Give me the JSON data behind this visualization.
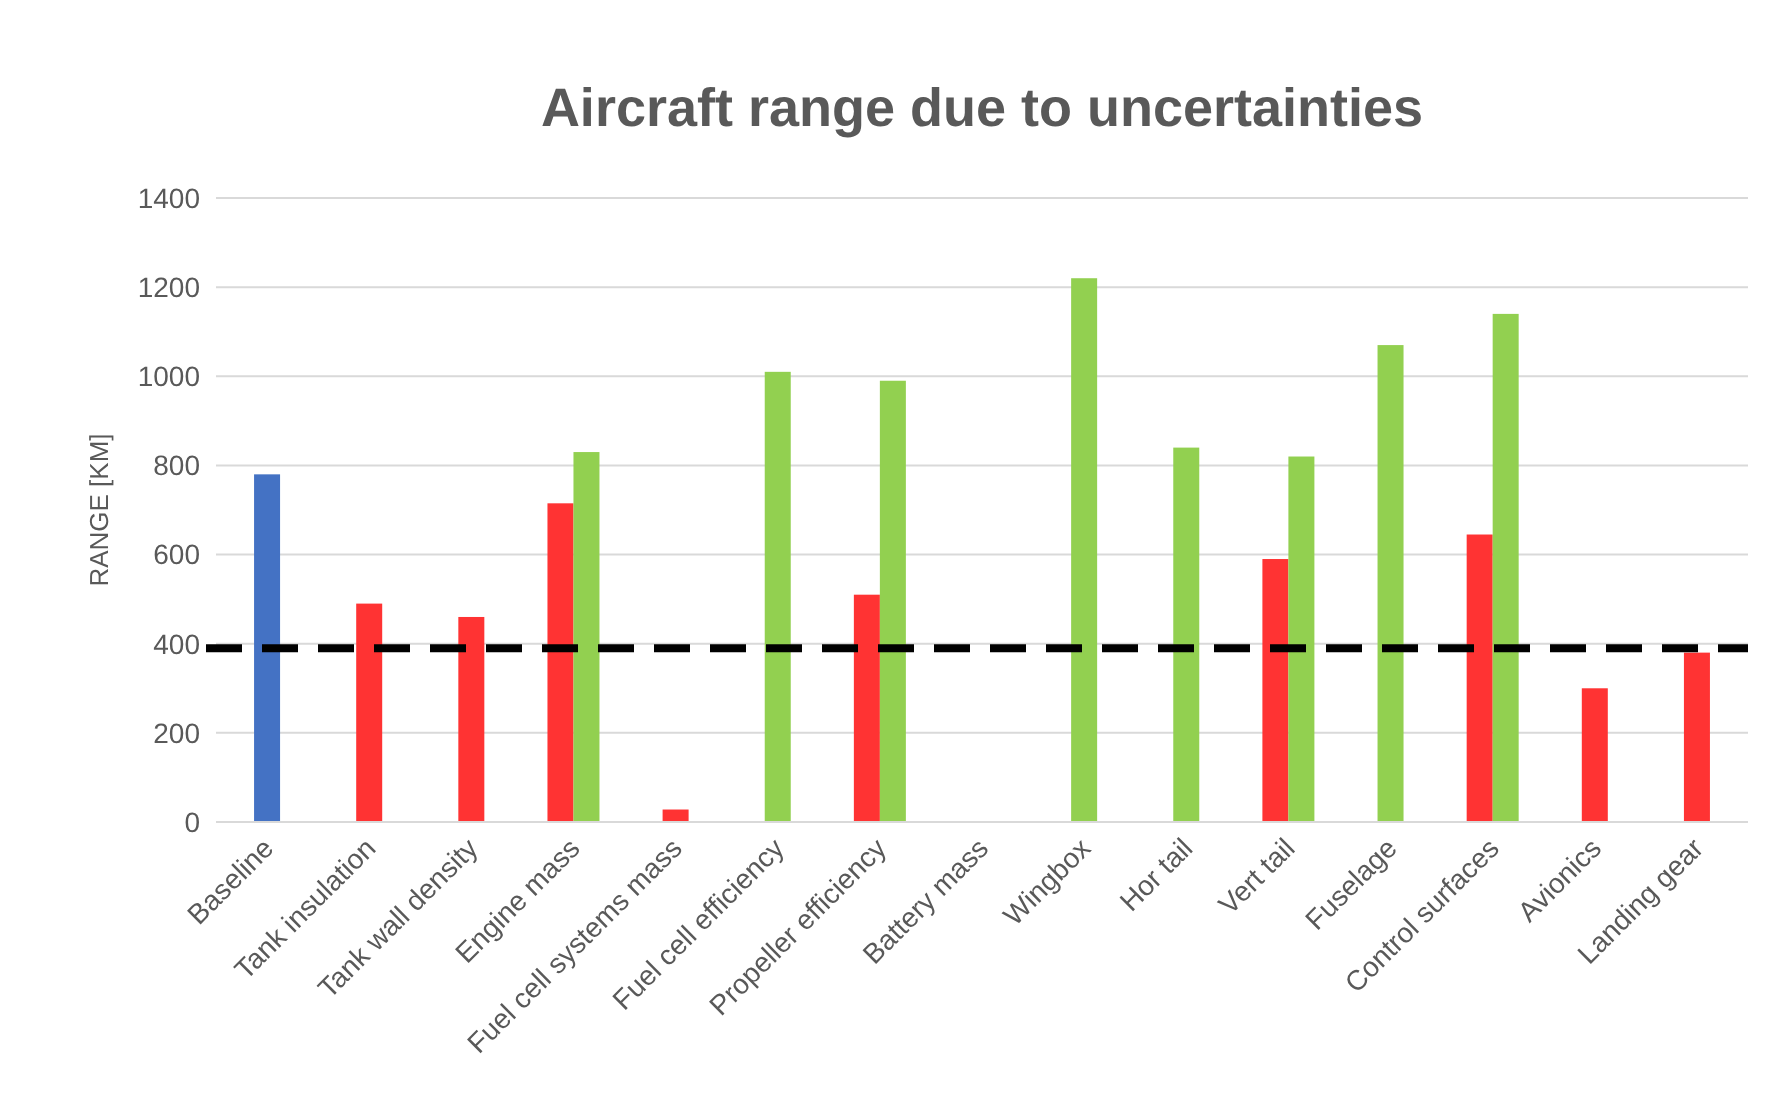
{
  "chart_data": {
    "type": "bar",
    "title": "Aircraft range due to uncertainties",
    "ylabel": "RANGE [KM]",
    "categories": [
      "Baseline",
      "Tank insulation",
      "Tank wall density",
      "Engine mass",
      "Fuel cell systems mass",
      "Fuel cell efficiency",
      "Propeller efficiency",
      "Battery mass",
      "Wingbox",
      "Hor tail",
      "Vert tail",
      "Fuselage",
      "Control surfaces",
      "Avionics",
      "Landing gear"
    ],
    "series": [
      {
        "color": "#4472c4",
        "values": [
          780,
          null,
          null,
          null,
          null,
          null,
          null,
          null,
          null,
          null,
          null,
          null,
          null,
          null,
          null
        ]
      },
      {
        "color": "#ff3333",
        "values": [
          null,
          490,
          460,
          715,
          28,
          null,
          510,
          null,
          null,
          null,
          590,
          null,
          645,
          300,
          380
        ]
      },
      {
        "color": "#92d050",
        "values": [
          null,
          null,
          null,
          830,
          null,
          1010,
          990,
          null,
          1220,
          840,
          820,
          1070,
          1140,
          null,
          null
        ]
      }
    ],
    "ylim": [
      0,
      1400
    ],
    "yticks": [
      0,
      200,
      400,
      600,
      800,
      1000,
      1200,
      1400
    ],
    "grid": "y",
    "ref_lines": [
      {
        "axis": "y",
        "value": 390,
        "color": "#000000",
        "line_style": "dashed"
      }
    ]
  }
}
